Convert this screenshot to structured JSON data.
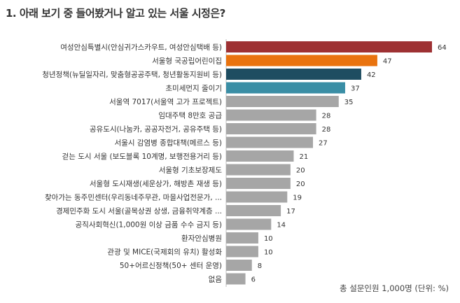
{
  "title": "1. 아래 보기 중 들어봤거나 알고 있는 서울 시정은?",
  "footnote": "총 설문인원 1,000명 (단위: %)",
  "colors": {
    "dark_red": "#9e3133",
    "orange": "#e9730f",
    "dark_teal": "#1e4d61",
    "teal": "#3a8ea5",
    "gray": "#a6a6a6"
  },
  "chart_data": {
    "type": "bar",
    "orientation": "horizontal",
    "title": "1. 아래 보기 중 들어봤거나 알고 있는 서울 시정은?",
    "categories": [
      "여성안심특별시(안심귀가스카우트, 여성안심택배 등)",
      "서울형 국공립어린이집",
      "청년정책(뉴딜일자리, 맞춤형공공주택, 청년활동지원비 등)",
      "초미세먼지 줄이기",
      "서울역 7017(서울역 고가 프로젝트)",
      "임대주택 8만호 공급",
      "공유도시(나눔카, 공공자전거, 공유주택 등)",
      "서울시 감염병 종합대책(메르스 등)",
      "걷는 도시 서울 (보도블록 10계명, 보행전용거리 등)",
      "서울형 기초보장제도",
      "서울형 도시재생(세운상가, 해방촌 재생 등)",
      "찾아가는 동주민센터(우리동네주무관,  마을사업전문가, ...",
      "경제민주화 도시 서울(골목상권 상생, 금융취약계층 ...",
      "공직사회혁신(1,000원 이상 금품 수수 금지 등)",
      "환자안심병원",
      "관광 및 MICE(국제회의 유치) 활성화",
      "50+어르신정책(50+ 센터 운영)",
      "없음"
    ],
    "values": [
      64,
      47,
      42,
      37,
      35,
      28,
      28,
      27,
      21,
      20,
      20,
      19,
      17,
      14,
      10,
      10,
      8,
      6
    ],
    "bar_colors": [
      "#9e3133",
      "#e9730f",
      "#1e4d61",
      "#3a8ea5",
      "#a6a6a6",
      "#a6a6a6",
      "#a6a6a6",
      "#a6a6a6",
      "#a6a6a6",
      "#a6a6a6",
      "#a6a6a6",
      "#a6a6a6",
      "#a6a6a6",
      "#a6a6a6",
      "#a6a6a6",
      "#a6a6a6",
      "#a6a6a6",
      "#a6a6a6"
    ],
    "unit": "%",
    "xlim": [
      0,
      70
    ],
    "grid": false,
    "legend": "none"
  }
}
